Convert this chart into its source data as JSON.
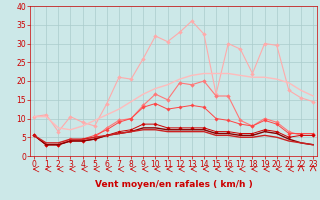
{
  "xlabel": "Vent moyen/en rafales ( km/h )",
  "background_color": "#cce8e8",
  "grid_color": "#aacccc",
  "x": [
    0,
    1,
    2,
    3,
    4,
    5,
    6,
    7,
    8,
    9,
    10,
    11,
    12,
    13,
    14,
    15,
    16,
    17,
    18,
    19,
    20,
    21,
    22,
    23
  ],
  "ylim": [
    0,
    40
  ],
  "xlim": [
    -0.3,
    23.3
  ],
  "yticks": [
    0,
    5,
    10,
    15,
    20,
    25,
    30,
    35,
    40
  ],
  "xticks": [
    0,
    1,
    2,
    3,
    4,
    5,
    6,
    7,
    8,
    9,
    10,
    11,
    12,
    13,
    14,
    15,
    16,
    17,
    18,
    19,
    20,
    21,
    22,
    23
  ],
  "series": [
    {
      "color": "#ffaaaa",
      "marker": "D",
      "markersize": 2.0,
      "linewidth": 0.8,
      "values": [
        10.5,
        11.0,
        6.5,
        10.5,
        9.0,
        8.0,
        14.0,
        21.0,
        20.5,
        26.0,
        32.0,
        30.5,
        33.0,
        36.0,
        32.5,
        16.5,
        30.0,
        28.5,
        22.0,
        30.0,
        29.5,
        17.5,
        15.5,
        14.5
      ]
    },
    {
      "color": "#ff7777",
      "marker": "D",
      "markersize": 2.0,
      "linewidth": 0.8,
      "values": [
        5.5,
        3.0,
        3.0,
        4.5,
        4.0,
        5.0,
        7.5,
        9.5,
        10.0,
        13.5,
        16.5,
        15.0,
        19.5,
        19.0,
        20.0,
        16.0,
        16.0,
        9.5,
        8.0,
        10.0,
        9.0,
        6.5,
        5.5,
        5.5
      ]
    },
    {
      "color": "#ff4444",
      "marker": "D",
      "markersize": 1.8,
      "linewidth": 0.7,
      "values": [
        5.5,
        3.0,
        3.0,
        4.0,
        4.5,
        5.5,
        7.0,
        9.0,
        10.0,
        13.0,
        14.0,
        12.5,
        13.0,
        13.5,
        13.0,
        10.0,
        9.5,
        8.5,
        8.0,
        9.5,
        8.5,
        6.0,
        6.0,
        6.0
      ]
    },
    {
      "color": "#cc0000",
      "marker": "D",
      "markersize": 1.8,
      "linewidth": 0.7,
      "values": [
        5.5,
        3.0,
        3.0,
        4.0,
        4.0,
        4.5,
        5.5,
        6.5,
        7.0,
        8.5,
        8.5,
        7.5,
        7.5,
        7.5,
        7.5,
        6.5,
        6.5,
        6.0,
        6.0,
        7.0,
        6.5,
        5.0,
        5.5,
        5.5
      ]
    },
    {
      "color": "#880000",
      "marker": null,
      "linewidth": 1.0,
      "values": [
        5.5,
        3.0,
        3.0,
        4.0,
        4.0,
        4.5,
        5.5,
        6.0,
        6.5,
        7.5,
        7.5,
        7.0,
        7.0,
        7.0,
        7.0,
        6.0,
        6.0,
        5.5,
        5.5,
        6.5,
        6.0,
        4.5,
        3.5,
        3.0
      ]
    },
    {
      "color": "#ffbbbb",
      "marker": null,
      "linewidth": 1.0,
      "values": [
        10.5,
        10.5,
        7.5,
        7.0,
        8.0,
        9.5,
        11.0,
        12.5,
        14.5,
        16.5,
        18.0,
        19.0,
        20.5,
        21.5,
        22.0,
        22.0,
        22.0,
        21.5,
        21.0,
        21.0,
        20.5,
        19.5,
        17.5,
        16.0
      ]
    },
    {
      "color": "#cc2222",
      "marker": null,
      "linewidth": 1.0,
      "values": [
        5.5,
        3.5,
        3.5,
        4.5,
        4.5,
        5.0,
        5.5,
        6.0,
        6.5,
        7.0,
        7.0,
        6.5,
        6.5,
        6.5,
        6.5,
        5.5,
        5.5,
        5.0,
        5.0,
        5.5,
        5.0,
        4.0,
        3.5,
        3.0
      ]
    }
  ],
  "xlabel_color": "#cc0000",
  "tick_color": "#cc0000",
  "xlabel_fontsize": 6.5,
  "tick_fontsize": 5.5
}
